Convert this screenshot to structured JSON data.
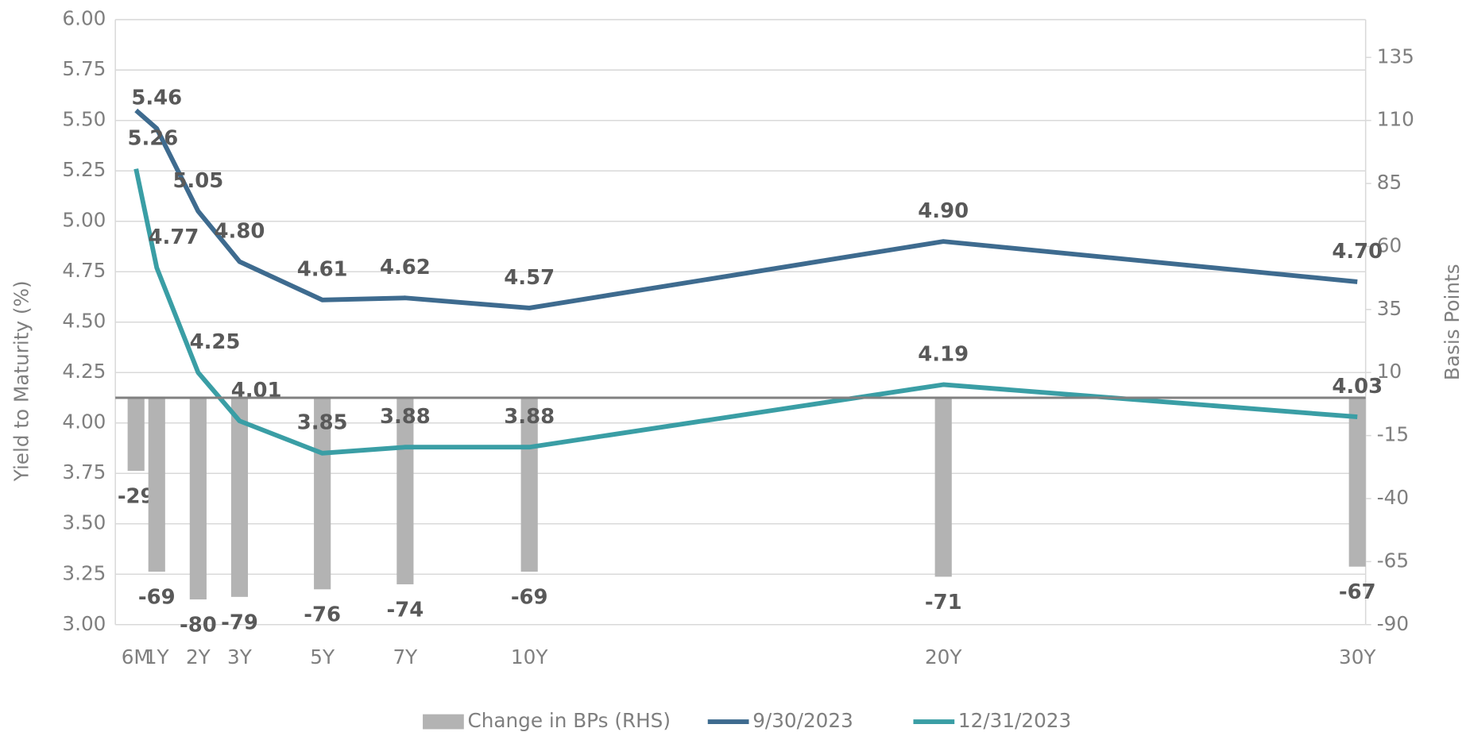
{
  "chart_data": {
    "type": "combo",
    "x": [
      0.5,
      1,
      2,
      3,
      5,
      7,
      10,
      20,
      30
    ],
    "xlim": [
      0,
      30.2
    ],
    "xticks": [
      {
        "value": 0.5,
        "label": "6M"
      },
      {
        "value": 1,
        "label": "1Y"
      },
      {
        "value": 2,
        "label": "2Y"
      },
      {
        "value": 3,
        "label": "3Y"
      },
      {
        "value": 5,
        "label": "5Y"
      },
      {
        "value": 7,
        "label": "7Y"
      },
      {
        "value": 10,
        "label": "10Y"
      },
      {
        "value": 20,
        "label": "20Y"
      },
      {
        "value": 30,
        "label": "30Y"
      }
    ],
    "ylabel": "Yield to Maturity (%)",
    "y2label": "Basis Points",
    "ylim": [
      3,
      6
    ],
    "yticks": [
      {
        "value": 3,
        "label": "3.00"
      },
      {
        "value": 3.25,
        "label": "3.25"
      },
      {
        "value": 3.5,
        "label": "3.50"
      },
      {
        "value": 3.75,
        "label": "3.75"
      },
      {
        "value": 4,
        "label": "4.00"
      },
      {
        "value": 4.25,
        "label": "4.25"
      },
      {
        "value": 4.5,
        "label": "4.50"
      },
      {
        "value": 4.75,
        "label": "4.75"
      },
      {
        "value": 5,
        "label": "5.00"
      },
      {
        "value": 5.25,
        "label": "5.25"
      },
      {
        "value": 5.5,
        "label": "5.50"
      },
      {
        "value": 5.75,
        "label": "5.75"
      },
      {
        "value": 6,
        "label": "6.00"
      }
    ],
    "y2lim": [
      -90,
      150
    ],
    "y2ticks": [
      -90,
      -65,
      -40,
      -15,
      10,
      35,
      60,
      85,
      110,
      135
    ],
    "grid": true,
    "legend": "bottom",
    "series": [
      {
        "name": "Change in BPs (RHS)",
        "type": "bar",
        "axis": "y2",
        "color": "#b3b3b3",
        "values": [
          -29,
          -69,
          -80,
          -79,
          -76,
          -74,
          -69,
          -71,
          -67
        ]
      },
      {
        "name": "9/30/2023",
        "type": "line",
        "axis": "y",
        "color": "#3e6b8f",
        "values": [
          5.55,
          5.46,
          5.05,
          4.8,
          4.61,
          4.62,
          4.57,
          4.9,
          4.7
        ],
        "value_labels": [
          null,
          "5.46",
          "5.05",
          "4.80",
          "4.61",
          "4.62",
          "4.57",
          "4.90",
          "4.70"
        ]
      },
      {
        "name": "12/31/2023",
        "type": "line",
        "axis": "y",
        "color": "#3a9ea5",
        "values": [
          5.26,
          4.77,
          4.25,
          4.01,
          3.85,
          3.88,
          3.88,
          4.19,
          4.03
        ],
        "value_labels": [
          "5.26",
          "4.77",
          "4.25",
          "4.01",
          "3.85",
          "3.88",
          "3.88",
          "4.19",
          "4.03"
        ]
      }
    ]
  }
}
